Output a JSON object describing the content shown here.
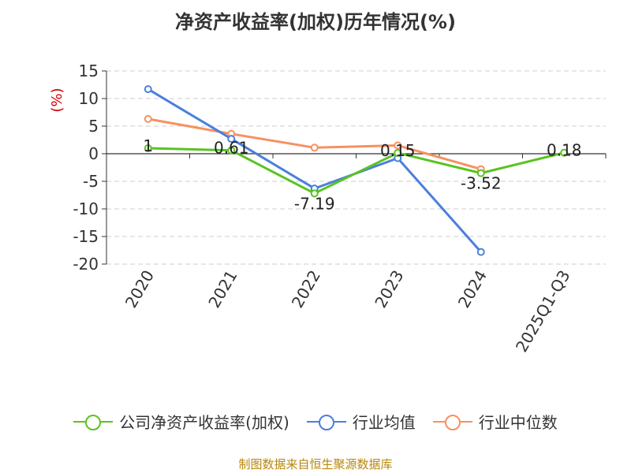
{
  "title": "净资产收益率(加权)历年情况(%)",
  "source": "制图数据来自恒生聚源数据库",
  "chart_data": {
    "type": "line",
    "title": "净资产收益率(加权)历年情况(%)",
    "ylabel": "(%)",
    "ylim": [
      -20,
      15
    ],
    "yticks": [
      15,
      10,
      5,
      0,
      -5,
      -10,
      -15,
      -20
    ],
    "categories": [
      "2020",
      "2021",
      "2022",
      "2023",
      "2024",
      "2025Q1-Q3"
    ],
    "grid": true,
    "legend": "bottom",
    "series": [
      {
        "name": "公司净资产收益率(加权)",
        "color": "#5ac322",
        "values": [
          1,
          0.61,
          -7.19,
          0.15,
          -3.52,
          0.18
        ],
        "labels": [
          "1",
          "0.61",
          "-7.19",
          "0.15",
          "-3.52",
          "0.18"
        ]
      },
      {
        "name": "行业均值",
        "color": "#4a7fdc",
        "values": [
          11.7,
          2.7,
          -6.3,
          -0.8,
          -17.8,
          null
        ]
      },
      {
        "name": "行业中位数",
        "color": "#f79160",
        "values": [
          6.3,
          3.6,
          1.1,
          1.5,
          -2.8,
          null
        ]
      }
    ],
    "ylabel_color": "#d40000"
  }
}
